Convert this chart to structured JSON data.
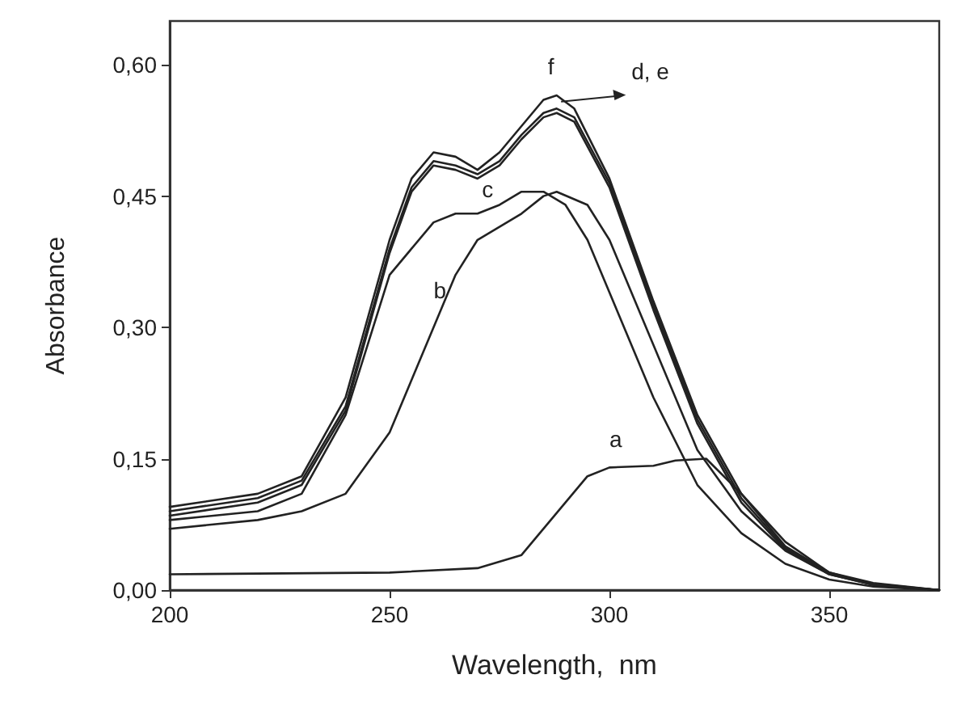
{
  "chart_data": {
    "type": "line",
    "xlabel": "Wavelength,  nm",
    "ylabel": "Absorbance",
    "xlim": [
      200,
      375
    ],
    "xticks": [
      200,
      250,
      300,
      350
    ],
    "ylim": [
      0,
      0.65
    ],
    "yticks": [
      {
        "value": 0,
        "label": "0,00"
      },
      {
        "value": 0.15,
        "label": "0,15"
      },
      {
        "value": 0.3,
        "label": "0,30"
      },
      {
        "value": 0.45,
        "label": "0,45"
      },
      {
        "value": 0.6,
        "label": "0,60"
      }
    ],
    "grid": false,
    "marker": "none",
    "line_style": "solid",
    "series": [
      {
        "color": "#222222",
        "x": [
          200,
          220,
          230,
          240,
          250,
          255,
          260,
          265,
          270,
          275,
          280,
          285,
          288,
          292,
          300,
          310,
          320,
          330,
          340,
          350,
          360,
          375
        ],
        "values": [
          0.095,
          0.11,
          0.13,
          0.22,
          0.4,
          0.47,
          0.5,
          0.495,
          0.48,
          0.5,
          0.53,
          0.56,
          0.565,
          0.55,
          0.47,
          0.33,
          0.2,
          0.11,
          0.05,
          0.02,
          0.008,
          0
        ]
      },
      {
        "color": "#222222",
        "x": [
          200,
          220,
          230,
          240,
          250,
          255,
          260,
          265,
          270,
          275,
          280,
          285,
          288,
          292,
          300,
          310,
          320,
          330,
          340,
          350,
          360,
          375
        ],
        "values": [
          0.09,
          0.105,
          0.125,
          0.21,
          0.39,
          0.46,
          0.49,
          0.485,
          0.475,
          0.49,
          0.52,
          0.545,
          0.55,
          0.54,
          0.465,
          0.325,
          0.195,
          0.105,
          0.048,
          0.019,
          0.007,
          0
        ]
      },
      {
        "color": "#222222",
        "x": [
          200,
          220,
          230,
          240,
          250,
          255,
          260,
          265,
          270,
          275,
          280,
          285,
          288,
          292,
          300,
          310,
          320,
          330,
          340,
          350,
          360,
          375
        ],
        "values": [
          0.085,
          0.1,
          0.12,
          0.205,
          0.385,
          0.455,
          0.485,
          0.48,
          0.47,
          0.485,
          0.515,
          0.54,
          0.545,
          0.535,
          0.46,
          0.32,
          0.19,
          0.1,
          0.046,
          0.018,
          0.006,
          0
        ]
      },
      {
        "color": "#222222",
        "x": [
          200,
          220,
          230,
          240,
          250,
          260,
          265,
          270,
          275,
          280,
          285,
          290,
          295,
          300,
          310,
          320,
          330,
          340,
          350,
          360,
          375
        ],
        "values": [
          0.08,
          0.09,
          0.11,
          0.2,
          0.36,
          0.42,
          0.43,
          0.43,
          0.44,
          0.455,
          0.455,
          0.44,
          0.4,
          0.34,
          0.22,
          0.12,
          0.065,
          0.03,
          0.012,
          0.004,
          0
        ]
      },
      {
        "color": "#222222",
        "x": [
          200,
          220,
          230,
          240,
          250,
          260,
          265,
          270,
          280,
          285,
          288,
          295,
          300,
          310,
          320,
          330,
          340,
          350,
          360,
          375
        ],
        "values": [
          0.07,
          0.08,
          0.09,
          0.11,
          0.18,
          0.3,
          0.36,
          0.4,
          0.43,
          0.45,
          0.455,
          0.44,
          0.4,
          0.28,
          0.16,
          0.09,
          0.045,
          0.018,
          0.006,
          0
        ]
      },
      {
        "color": "#222222",
        "x": [
          200,
          250,
          270,
          280,
          290,
          295,
          300,
          310,
          315,
          322,
          330,
          340,
          350,
          360,
          375
        ],
        "values": [
          0.018,
          0.02,
          0.025,
          0.04,
          0.1,
          0.13,
          0.14,
          0.142,
          0.148,
          0.15,
          0.11,
          0.055,
          0.02,
          0.006,
          0
        ]
      }
    ],
    "annotations": [
      "f",
      "d, e",
      "c",
      "b",
      "a"
    ]
  }
}
